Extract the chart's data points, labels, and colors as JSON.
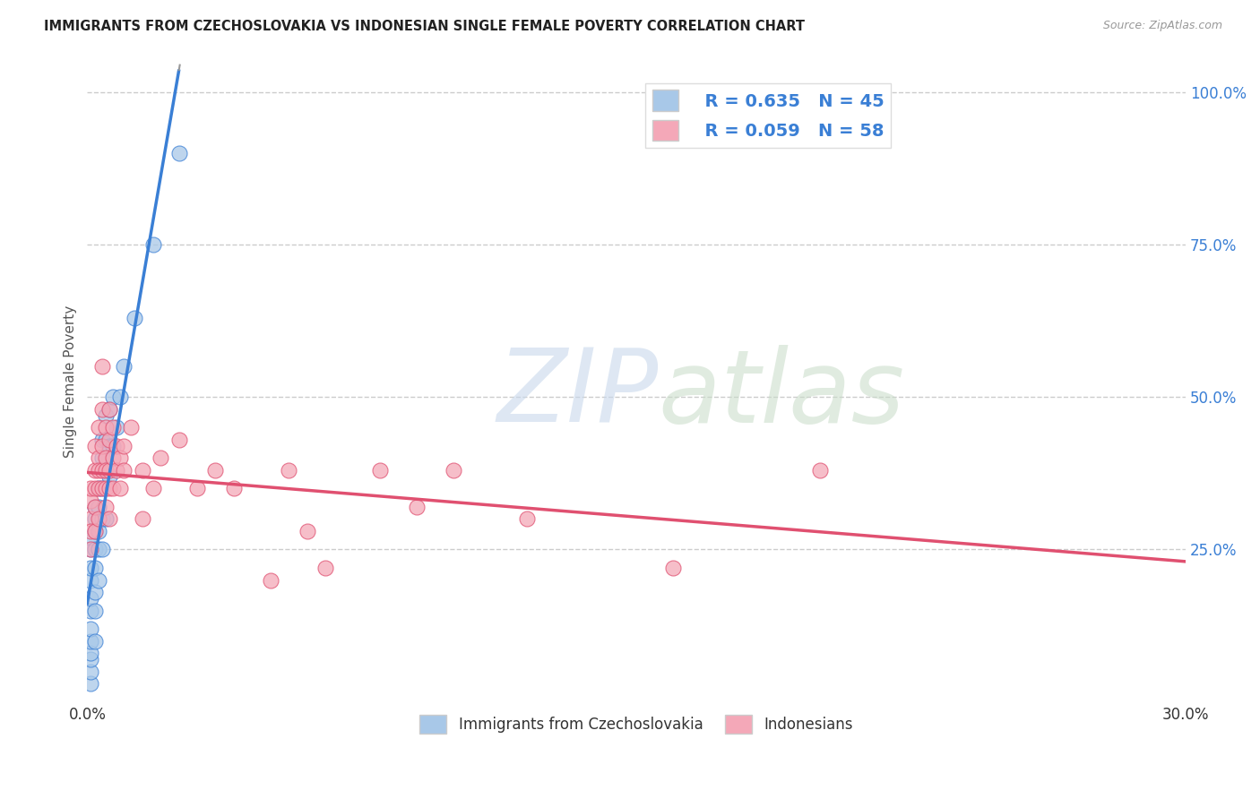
{
  "title": "IMMIGRANTS FROM CZECHOSLOVAKIA VS INDONESIAN SINGLE FEMALE POVERTY CORRELATION CHART",
  "source": "Source: ZipAtlas.com",
  "ylabel": "Single Female Poverty",
  "right_yticks": [
    "25.0%",
    "50.0%",
    "75.0%",
    "100.0%"
  ],
  "right_ytick_vals": [
    0.25,
    0.5,
    0.75,
    1.0
  ],
  "xlim": [
    0.0,
    0.3
  ],
  "ylim": [
    0.0,
    1.05
  ],
  "R_czech": 0.635,
  "N_czech": 45,
  "R_indo": 0.059,
  "N_indo": 58,
  "legend_labels": [
    "Immigrants from Czechoslovakia",
    "Indonesians"
  ],
  "color_czech": "#a8c8e8",
  "color_indo": "#f4a8b8",
  "line_color_czech": "#3a7fd5",
  "line_color_indo": "#e05070",
  "background_color": "#ffffff",
  "czech_scatter": [
    [
      0.001,
      0.03
    ],
    [
      0.001,
      0.05
    ],
    [
      0.001,
      0.07
    ],
    [
      0.001,
      0.08
    ],
    [
      0.001,
      0.1
    ],
    [
      0.001,
      0.12
    ],
    [
      0.001,
      0.15
    ],
    [
      0.001,
      0.17
    ],
    [
      0.001,
      0.2
    ],
    [
      0.001,
      0.22
    ],
    [
      0.001,
      0.25
    ],
    [
      0.001,
      0.27
    ],
    [
      0.002,
      0.1
    ],
    [
      0.002,
      0.15
    ],
    [
      0.002,
      0.18
    ],
    [
      0.002,
      0.22
    ],
    [
      0.002,
      0.25
    ],
    [
      0.002,
      0.28
    ],
    [
      0.002,
      0.3
    ],
    [
      0.002,
      0.32
    ],
    [
      0.003,
      0.2
    ],
    [
      0.003,
      0.25
    ],
    [
      0.003,
      0.28
    ],
    [
      0.003,
      0.32
    ],
    [
      0.003,
      0.35
    ],
    [
      0.004,
      0.25
    ],
    [
      0.004,
      0.3
    ],
    [
      0.004,
      0.35
    ],
    [
      0.004,
      0.4
    ],
    [
      0.004,
      0.43
    ],
    [
      0.005,
      0.3
    ],
    [
      0.005,
      0.38
    ],
    [
      0.005,
      0.43
    ],
    [
      0.005,
      0.47
    ],
    [
      0.006,
      0.37
    ],
    [
      0.006,
      0.42
    ],
    [
      0.006,
      0.48
    ],
    [
      0.007,
      0.42
    ],
    [
      0.007,
      0.5
    ],
    [
      0.008,
      0.45
    ],
    [
      0.009,
      0.5
    ],
    [
      0.01,
      0.55
    ],
    [
      0.013,
      0.63
    ],
    [
      0.018,
      0.75
    ],
    [
      0.025,
      0.9
    ]
  ],
  "indo_scatter": [
    [
      0.001,
      0.3
    ],
    [
      0.001,
      0.33
    ],
    [
      0.001,
      0.28
    ],
    [
      0.001,
      0.25
    ],
    [
      0.001,
      0.35
    ],
    [
      0.002,
      0.32
    ],
    [
      0.002,
      0.38
    ],
    [
      0.002,
      0.28
    ],
    [
      0.002,
      0.42
    ],
    [
      0.002,
      0.35
    ],
    [
      0.003,
      0.4
    ],
    [
      0.003,
      0.38
    ],
    [
      0.003,
      0.35
    ],
    [
      0.003,
      0.45
    ],
    [
      0.003,
      0.3
    ],
    [
      0.004,
      0.42
    ],
    [
      0.004,
      0.35
    ],
    [
      0.004,
      0.48
    ],
    [
      0.004,
      0.38
    ],
    [
      0.004,
      0.55
    ],
    [
      0.005,
      0.4
    ],
    [
      0.005,
      0.35
    ],
    [
      0.005,
      0.45
    ],
    [
      0.005,
      0.38
    ],
    [
      0.005,
      0.32
    ],
    [
      0.006,
      0.43
    ],
    [
      0.006,
      0.38
    ],
    [
      0.006,
      0.35
    ],
    [
      0.006,
      0.48
    ],
    [
      0.006,
      0.3
    ],
    [
      0.007,
      0.4
    ],
    [
      0.007,
      0.45
    ],
    [
      0.007,
      0.35
    ],
    [
      0.008,
      0.38
    ],
    [
      0.008,
      0.42
    ],
    [
      0.009,
      0.35
    ],
    [
      0.009,
      0.4
    ],
    [
      0.01,
      0.38
    ],
    [
      0.01,
      0.42
    ],
    [
      0.012,
      0.45
    ],
    [
      0.015,
      0.38
    ],
    [
      0.015,
      0.3
    ],
    [
      0.018,
      0.35
    ],
    [
      0.02,
      0.4
    ],
    [
      0.025,
      0.43
    ],
    [
      0.03,
      0.35
    ],
    [
      0.035,
      0.38
    ],
    [
      0.04,
      0.35
    ],
    [
      0.05,
      0.2
    ],
    [
      0.055,
      0.38
    ],
    [
      0.06,
      0.28
    ],
    [
      0.065,
      0.22
    ],
    [
      0.08,
      0.38
    ],
    [
      0.09,
      0.32
    ],
    [
      0.1,
      0.38
    ],
    [
      0.12,
      0.3
    ],
    [
      0.16,
      0.22
    ],
    [
      0.2,
      0.38
    ]
  ]
}
